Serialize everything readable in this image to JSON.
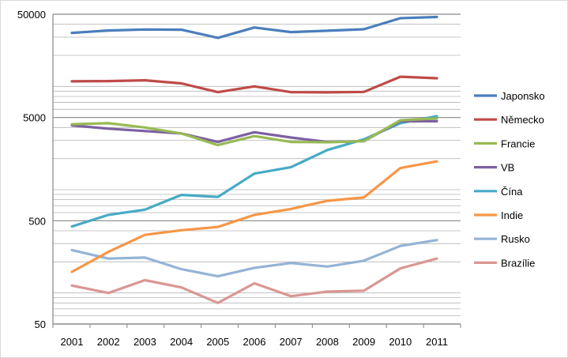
{
  "chart_data": {
    "type": "line",
    "title": "",
    "xlabel": "",
    "ylabel": "",
    "y_scale": "log",
    "ylim": [
      50,
      50000
    ],
    "grid": "horizontal major and minor",
    "legend_position": "right",
    "x": [
      "2001",
      "2002",
      "2003",
      "2004",
      "2005",
      "2006",
      "2007",
      "2008",
      "2009",
      "2010",
      "2011"
    ],
    "y_ticks": [
      {
        "value": 50,
        "label": "50"
      },
      {
        "value": 500,
        "label": "500"
      },
      {
        "value": 5000,
        "label": "5000"
      },
      {
        "value": 50000,
        "label": "50000"
      }
    ],
    "series": [
      {
        "name": "Japonsko",
        "color": "#4a7ebb",
        "values": [
          33000,
          34800,
          35600,
          35400,
          29500,
          37200,
          33600,
          34600,
          35800,
          45800,
          47000
        ]
      },
      {
        "name": "Německo",
        "color": "#be4b48",
        "values": [
          11200,
          11250,
          11450,
          10700,
          8800,
          10000,
          8800,
          8750,
          8850,
          12400,
          12000
        ]
      },
      {
        "name": "Francie",
        "color": "#98b954",
        "values": [
          4300,
          4400,
          4000,
          3500,
          2700,
          3300,
          2900,
          2880,
          2950,
          4700,
          4900
        ]
      },
      {
        "name": "VB",
        "color": "#7d60a0",
        "values": [
          4200,
          3900,
          3700,
          3500,
          2900,
          3600,
          3200,
          2900,
          2950,
          4600,
          4600
        ]
      },
      {
        "name": "Čína",
        "color": "#46aac5",
        "values": [
          440,
          570,
          640,
          890,
          850,
          1430,
          1650,
          2420,
          3070,
          4400,
          5150
        ]
      },
      {
        "name": "Indie",
        "color": "#f79646",
        "values": [
          160,
          250,
          365,
          405,
          435,
          570,
          650,
          780,
          840,
          1620,
          1880
        ]
      },
      {
        "name": "Rusko",
        "color": "#94b3d6",
        "values": [
          260,
          215,
          220,
          170,
          145,
          175,
          195,
          180,
          205,
          285,
          325
        ]
      },
      {
        "name": "Brazílie",
        "color": "#d99694",
        "values": [
          118,
          100,
          133,
          113,
          80,
          124,
          93,
          103,
          105,
          173,
          215
        ]
      }
    ]
  }
}
